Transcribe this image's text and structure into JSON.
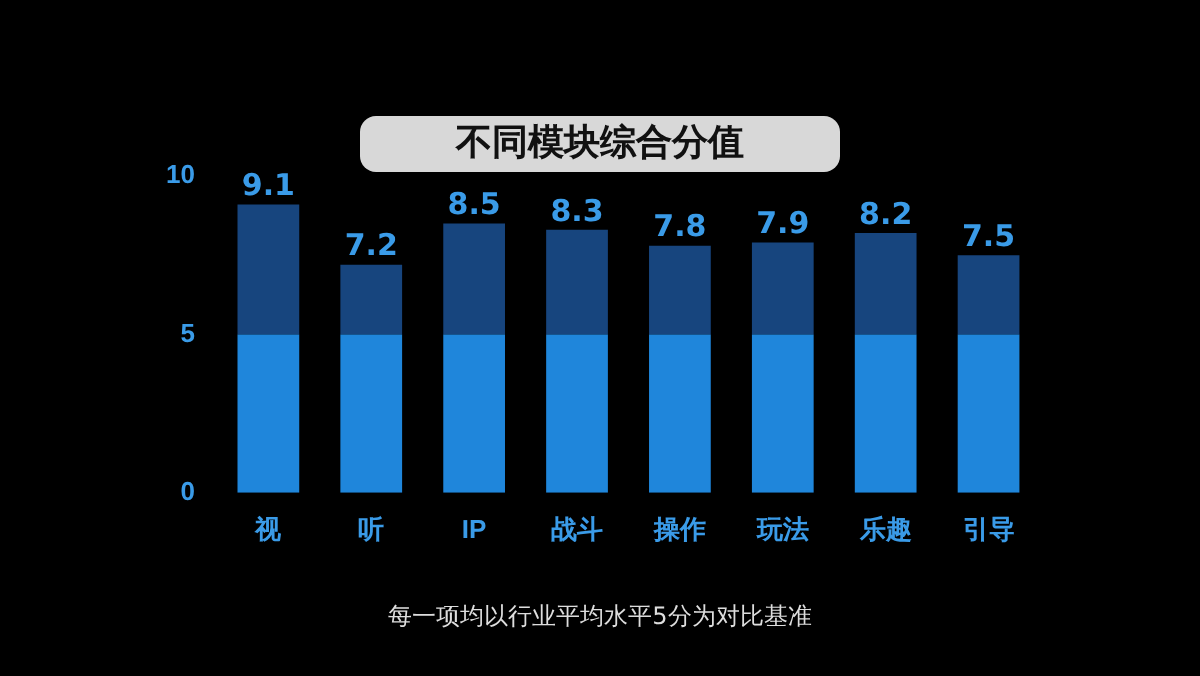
{
  "chart_data": {
    "type": "bar",
    "title": "不同模块综合分值",
    "stacked": true,
    "categories": [
      "视",
      "听",
      "IP",
      "战斗",
      "操作",
      "玩法",
      "乐趣",
      "引导"
    ],
    "series": [
      {
        "color": "#1f86db",
        "values": [
          5,
          5,
          5,
          5,
          5,
          5,
          5,
          5
        ]
      },
      {
        "color": "#17457e",
        "values": [
          4.1,
          2.2,
          3.5,
          3.3,
          2.8,
          2.9,
          3.2,
          2.5
        ]
      }
    ],
    "totals": [
      "9.1",
      "7.2",
      "8.5",
      "8.3",
      "7.8",
      "7.9",
      "8.2",
      "7.5"
    ],
    "ylim": [
      0,
      10
    ],
    "yticks": [
      0,
      5,
      10
    ],
    "grid": false,
    "annotations": [
      "每一项均以行业平均水平5分为对比基准"
    ]
  }
}
